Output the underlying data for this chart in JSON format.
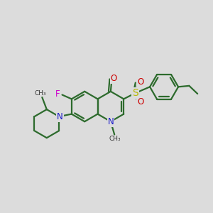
{
  "bg_color": "#dcdcdc",
  "bond_color": "#2d6b2d",
  "bond_width": 1.6,
  "atom_colors": {
    "N": "#1a1acc",
    "O": "#cc0000",
    "F": "#cc00cc",
    "S": "#b8b800",
    "C": "#2d6b2d"
  },
  "font_size": 8.5,
  "ring_r": 0.72
}
